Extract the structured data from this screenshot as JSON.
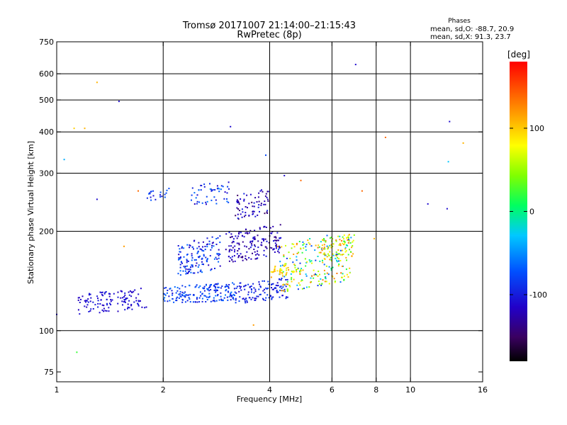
{
  "chart_data": {
    "type": "scatter",
    "title": "Tromsø 20171007 21:14:00–21:15:43",
    "subtitle": "RwPretec (8p)",
    "xlabel": "Frequency [MHz]",
    "ylabel": "Stationary phase Virtual Height [km]",
    "x_scale": "log",
    "y_scale": "log",
    "xlim": [
      1,
      16
    ],
    "ylim": [
      70,
      750
    ],
    "xticks": [
      1,
      2,
      4,
      6,
      8,
      10,
      16
    ],
    "yticks": [
      75,
      100,
      200,
      300,
      400,
      500,
      600,
      750
    ],
    "x_gridlines": [
      2,
      4,
      6,
      8,
      10
    ],
    "y_gridlines": [
      100,
      200,
      300,
      400,
      500,
      600
    ],
    "grid": true,
    "phases_box": {
      "heading": "Phases",
      "line_o": "mean, sd,O: -88.7, 20.9",
      "line_x": "mean, sd,X:  91.3, 23.7"
    },
    "colorbar": {
      "label": "[deg]",
      "range": [
        -180,
        180
      ],
      "ticks": [
        100,
        0,
        -100
      ]
    },
    "clusters": [
      {
        "f": [
          1.15,
          1.8
        ],
        "h": [
          112,
          135
        ],
        "phase": [
          -120,
          -100
        ],
        "n": 120
      },
      {
        "f": [
          2.0,
          3.2
        ],
        "h": [
          120,
          140
        ],
        "phase": [
          -110,
          -60
        ],
        "n": 180
      },
      {
        "f": [
          2.2,
          2.9
        ],
        "h": [
          145,
          195
        ],
        "phase": [
          -120,
          -60
        ],
        "n": 140
      },
      {
        "f": [
          3.0,
          4.3
        ],
        "h": [
          160,
          210
        ],
        "phase": [
          -140,
          -100
        ],
        "n": 160
      },
      {
        "f": [
          3.2,
          4.5
        ],
        "h": [
          120,
          145
        ],
        "phase": [
          -115,
          -80
        ],
        "n": 120
      },
      {
        "f": [
          4.2,
          6.8
        ],
        "h": [
          130,
          200
        ],
        "phase": [
          -90,
          140
        ],
        "n": 220
      },
      {
        "f": [
          5.6,
          7.0
        ],
        "h": [
          160,
          200
        ],
        "phase": [
          20,
          140
        ],
        "n": 80
      },
      {
        "f": [
          3.2,
          4.0
        ],
        "h": [
          215,
          270
        ],
        "phase": [
          -150,
          -95
        ],
        "n": 70
      },
      {
        "f": [
          2.4,
          3.1
        ],
        "h": [
          235,
          285
        ],
        "phase": [
          -120,
          -50
        ],
        "n": 50
      },
      {
        "f": [
          1.8,
          2.1
        ],
        "h": [
          245,
          270
        ],
        "phase": [
          -110,
          -70
        ],
        "n": 20
      },
      {
        "f": [
          4.0,
          5.0
        ],
        "h": [
          145,
          160
        ],
        "phase": [
          60,
          120
        ],
        "n": 40
      }
    ],
    "scatter": [
      {
        "f": 1.3,
        "h": 565,
        "phase": 110
      },
      {
        "f": 1.5,
        "h": 495,
        "phase": -110
      },
      {
        "f": 1.12,
        "h": 410,
        "phase": 100
      },
      {
        "f": 1.2,
        "h": 410,
        "phase": 110
      },
      {
        "f": 3.1,
        "h": 415,
        "phase": -110
      },
      {
        "f": 7.0,
        "h": 640,
        "phase": -110
      },
      {
        "f": 8.5,
        "h": 385,
        "phase": 140
      },
      {
        "f": 12.9,
        "h": 430,
        "phase": -110
      },
      {
        "f": 14.1,
        "h": 370,
        "phase": 110
      },
      {
        "f": 12.8,
        "h": 325,
        "phase": -30
      },
      {
        "f": 1.05,
        "h": 330,
        "phase": -40
      },
      {
        "f": 1.3,
        "h": 250,
        "phase": -110
      },
      {
        "f": 1.7,
        "h": 265,
        "phase": 140
      },
      {
        "f": 11.2,
        "h": 242,
        "phase": -110
      },
      {
        "f": 12.7,
        "h": 234,
        "phase": -110
      },
      {
        "f": 7.3,
        "h": 265,
        "phase": 140
      },
      {
        "f": 7.9,
        "h": 190,
        "phase": 110
      },
      {
        "f": 1.14,
        "h": 86,
        "phase": 20
      },
      {
        "f": 3.6,
        "h": 104,
        "phase": 120
      },
      {
        "f": 1.0,
        "h": 112,
        "phase": -110
      },
      {
        "f": 1.55,
        "h": 180,
        "phase": 120
      },
      {
        "f": 4.4,
        "h": 295,
        "phase": -110
      },
      {
        "f": 4.9,
        "h": 285,
        "phase": 140
      },
      {
        "f": 3.9,
        "h": 340,
        "phase": -80
      }
    ]
  }
}
